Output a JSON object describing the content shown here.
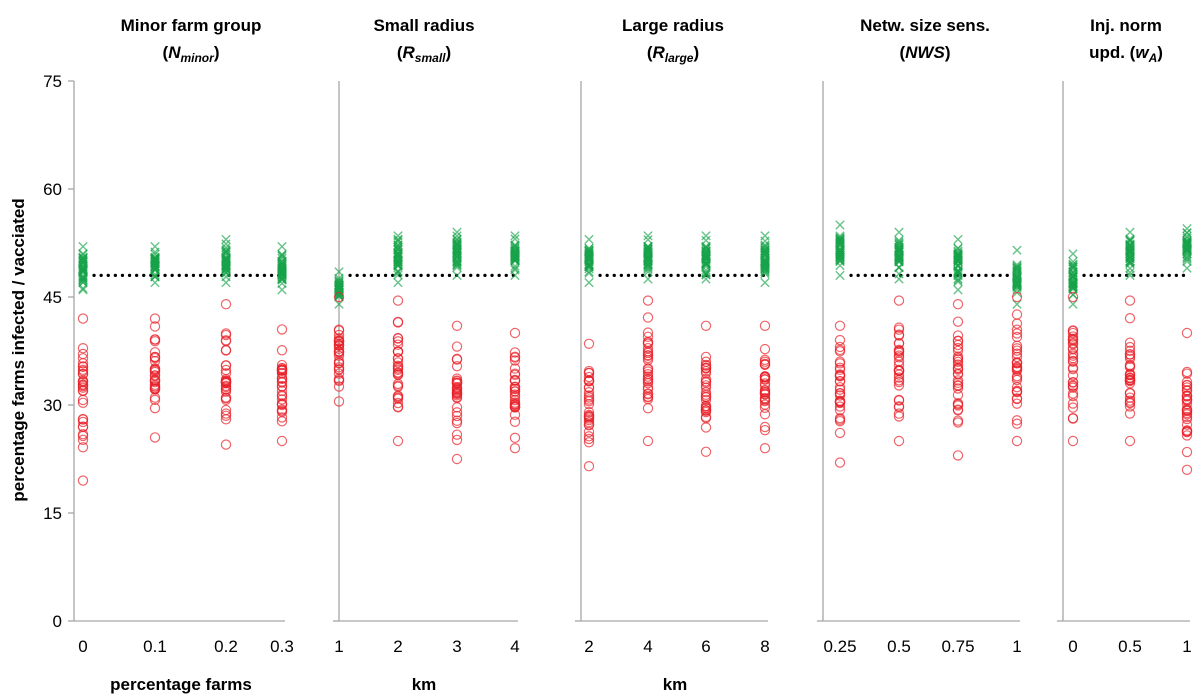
{
  "chart_data": {
    "type": "scatter",
    "ylabel": "percentage farms infected / vacciated",
    "ylim": [
      0,
      75
    ],
    "yticks": [
      "0",
      "15",
      "30",
      "45",
      "60",
      "75"
    ],
    "colors": {
      "infected": "#e8212a",
      "vaccinated": "#17a34a",
      "reference": "#000000",
      "axis": "#a6a6a6"
    },
    "markers": {
      "infected": "circle",
      "vaccinated": "x"
    },
    "reference_value": 48,
    "panels": [
      {
        "title_line1": "Minor farm group",
        "title_line2": {
          "open": "(",
          "main": "N",
          "sub": "minor",
          "close": ")"
        },
        "xlabel": "percentage farms",
        "ticks": [
          "0",
          "0.1",
          "0.2",
          "0.3"
        ],
        "series": [
          {
            "series": "vaccinated",
            "values": [
              [
                46,
                52
              ],
              [
                47,
                52
              ],
              [
                47,
                53
              ],
              [
                46,
                52
              ]
            ]
          },
          {
            "series": "infected",
            "values": [
              [
                19.5,
                42
              ],
              [
                25.5,
                42
              ],
              [
                24.5,
                44
              ],
              [
                25,
                40.5
              ]
            ]
          }
        ]
      },
      {
        "title_line1": "Small radius",
        "title_line2": {
          "open": "(",
          "main": "R",
          "sub": "small",
          "close": ")"
        },
        "xlabel": "km",
        "ticks": [
          "1",
          "2",
          "3",
          "4"
        ],
        "series": [
          {
            "series": "vaccinated",
            "values": [
              [
                44,
                48.5
              ],
              [
                47,
                53.5
              ],
              [
                48,
                54
              ],
              [
                48,
                53.5
              ]
            ]
          },
          {
            "series": "infected",
            "values": [
              [
                30.5,
                45
              ],
              [
                25,
                44.5
              ],
              [
                22.5,
                41
              ],
              [
                24,
                40
              ]
            ]
          }
        ]
      },
      {
        "title_line1": "Large radius",
        "title_line2": {
          "open": "(",
          "main": "R",
          "sub": "large",
          "close": ")"
        },
        "xlabel": "km",
        "ticks": [
          "2",
          "4",
          "6",
          "8"
        ],
        "series": [
          {
            "series": "vaccinated",
            "values": [
              [
                47,
                53
              ],
              [
                47.5,
                53.5
              ],
              [
                47.5,
                53.5
              ],
              [
                47,
                53.5
              ]
            ]
          },
          {
            "series": "infected",
            "values": [
              [
                21.5,
                38.5
              ],
              [
                25,
                44.5
              ],
              [
                23.5,
                41
              ],
              [
                24,
                41
              ]
            ]
          }
        ]
      },
      {
        "title_line1": "Netw. size sens.",
        "title_line2": {
          "open": "(",
          "main": "NWS",
          "sub": "",
          "close": ")"
        },
        "xlabel": "",
        "ticks": [
          "0.25",
          "0.5",
          "0.75",
          "1"
        ],
        "series": [
          {
            "series": "vaccinated",
            "values": [
              [
                48,
                55
              ],
              [
                47.5,
                54
              ],
              [
                46,
                53
              ],
              [
                44,
                51.5
              ]
            ]
          },
          {
            "series": "infected",
            "values": [
              [
                22,
                41
              ],
              [
                25,
                44.5
              ],
              [
                23,
                44
              ],
              [
                25,
                45
              ]
            ]
          }
        ]
      },
      {
        "title_line1": "Inj. norm",
        "title_line2": {
          "open": "upd. (",
          "main": "w",
          "sub": "A",
          "close": ")"
        },
        "xlabel": "",
        "ticks": [
          "0",
          "0.5",
          "1"
        ],
        "series": [
          {
            "series": "vaccinated",
            "values": [
              [
                44,
                51
              ],
              [
                48,
                54
              ],
              [
                49,
                54.5
              ]
            ]
          },
          {
            "series": "infected",
            "values": [
              [
                25,
                45
              ],
              [
                25,
                44.5
              ],
              [
                21,
                40
              ]
            ]
          }
        ]
      }
    ]
  }
}
